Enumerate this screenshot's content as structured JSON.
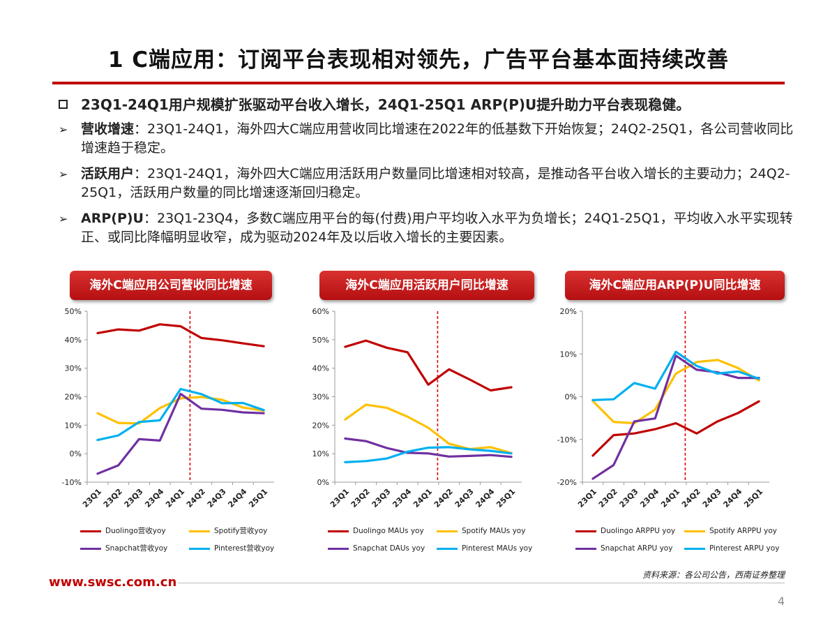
{
  "title": "1 C端应用：订阅平台表现相对领先，广告平台基本面持续改善",
  "bullets": {
    "main": "23Q1-24Q1用户规模扩张驱动平台收入增长，24Q1-25Q1 ARP(P)U提升助力平台表现稳健。",
    "items": [
      {
        "kw": "营收增速",
        "text": "：23Q1-24Q1，海外四大C端应用营收同比增速在2022年的低基数下开始恢复；24Q2-25Q1，各公司营收同比增速趋于稳定。"
      },
      {
        "kw": "活跃用户",
        "text": "：23Q1-24Q1，海外四大C端应用活跃用户数量同比增速相对较高，是推动各平台收入增长的主要动力；24Q2-25Q1，活跃用户数量的同比增速逐渐回归稳定。"
      },
      {
        "kw": "ARP(P)U",
        "text": "：23Q1-23Q4，多数C端应用平台的每(付费)用户平均收入水平为负增长；24Q1-25Q1，平均收入水平实现转正、或同比降幅明显收窄，成为驱动2024年及以后收入增长的主要因素。"
      }
    ]
  },
  "colors": {
    "duolingo": "#c00000",
    "spotify": "#ffc000",
    "snapchat": "#7030a0",
    "pinterest": "#00b0f0",
    "divider": "#e00000"
  },
  "chart_data": [
    {
      "type": "line",
      "title": "海外C端应用公司营收同比增速",
      "categories": [
        "23Q1",
        "23Q2",
        "23Q3",
        "23Q4",
        "24Q1",
        "24Q2",
        "24Q3",
        "24Q4",
        "25Q1"
      ],
      "ylim": [
        -10,
        50
      ],
      "yticks": [
        -10,
        0,
        10,
        20,
        30,
        40,
        50
      ],
      "ytick_labels": [
        "-10%",
        "0%",
        "10%",
        "20%",
        "30%",
        "40%",
        "50%"
      ],
      "divider_after": "24Q1",
      "series": [
        {
          "name": "Duolingo营收yoy",
          "color_key": "duolingo",
          "values": [
            42.3,
            43.6,
            43.2,
            45.4,
            44.7,
            40.6,
            39.8,
            38.7,
            37.7
          ]
        },
        {
          "name": "Spotify营收yoy",
          "color_key": "spotify",
          "values": [
            14.2,
            10.8,
            10.6,
            16.0,
            19.4,
            19.9,
            18.9,
            16.2,
            15.1
          ]
        },
        {
          "name": "Snapchat营收yoy",
          "color_key": "snapchat",
          "values": [
            -7.0,
            -4.1,
            5.1,
            4.6,
            21.0,
            15.8,
            15.4,
            14.5,
            14.2
          ]
        },
        {
          "name": "Pinterest营收yoy",
          "color_key": "pinterest",
          "values": [
            4.8,
            6.4,
            11.1,
            11.7,
            22.7,
            20.9,
            17.7,
            17.8,
            15.3
          ]
        }
      ]
    },
    {
      "type": "line",
      "title": "海外C端应用活跃用户同比增速",
      "categories": [
        "23Q1",
        "23Q2",
        "23Q3",
        "23Q4",
        "24Q1",
        "24Q2",
        "24Q3",
        "24Q4",
        "25Q1"
      ],
      "ylim": [
        0,
        60
      ],
      "yticks": [
        0,
        10,
        20,
        30,
        40,
        50,
        60
      ],
      "ytick_labels": [
        "0%",
        "10%",
        "20%",
        "30%",
        "40%",
        "50%",
        "60%"
      ],
      "divider_after": "24Q1",
      "series": [
        {
          "name": "Duolingo MAUs yoy",
          "color_key": "duolingo",
          "values": [
            47.5,
            49.7,
            47.2,
            45.6,
            34.2,
            39.6,
            36.0,
            32.2,
            33.3
          ]
        },
        {
          "name": "Spotify MAUs yoy",
          "color_key": "spotify",
          "values": [
            22.0,
            27.2,
            26.1,
            23.0,
            19.1,
            13.5,
            11.6,
            12.3,
            10.2
          ]
        },
        {
          "name": "Snapchat DAUs yoy",
          "color_key": "snapchat",
          "values": [
            15.3,
            14.4,
            12.0,
            10.3,
            10.1,
            9.0,
            9.2,
            9.5,
            8.9
          ]
        },
        {
          "name": "Pinterest MAUs yoy",
          "color_key": "pinterest",
          "values": [
            7.0,
            7.4,
            8.3,
            10.7,
            12.1,
            12.3,
            11.5,
            11.0,
            10.1
          ]
        }
      ]
    },
    {
      "type": "line",
      "title": "海外C端应用ARP(P)U同比增速",
      "categories": [
        "23Q1",
        "23Q2",
        "23Q3",
        "23Q4",
        "24Q1",
        "24Q2",
        "24Q3",
        "24Q4",
        "25Q1"
      ],
      "ylim": [
        -20,
        20
      ],
      "yticks": [
        -20,
        -10,
        0,
        10,
        20
      ],
      "ytick_labels": [
        "-20%",
        "-10%",
        "0%",
        "10%",
        "20%"
      ],
      "divider_after": "24Q1",
      "series": [
        {
          "name": "Duolingo ARPPU yoy",
          "color_key": "duolingo",
          "values": [
            -13.8,
            -9.0,
            -8.6,
            -7.6,
            -6.2,
            -8.6,
            -5.8,
            -3.8,
            -1.1
          ]
        },
        {
          "name": "Spotify ARPPU yoy",
          "color_key": "spotify",
          "values": [
            -1.0,
            -5.9,
            -6.2,
            -3.0,
            5.4,
            8.1,
            8.6,
            6.7,
            3.8
          ]
        },
        {
          "name": "Snapchat ARPU yoy",
          "color_key": "snapchat",
          "values": [
            -19.2,
            -16.0,
            -5.8,
            -5.1,
            9.6,
            6.3,
            5.7,
            4.4,
            4.4
          ]
        },
        {
          "name": "Pinterest ARPU yoy",
          "color_key": "pinterest",
          "values": [
            -0.8,
            -0.6,
            3.2,
            1.9,
            10.5,
            7.2,
            5.4,
            5.9,
            4.2
          ]
        }
      ]
    }
  ],
  "footer": {
    "website": "www.swsc.com.cn",
    "source": "资料来源：各公司公告，西南证券整理",
    "page": "4"
  }
}
